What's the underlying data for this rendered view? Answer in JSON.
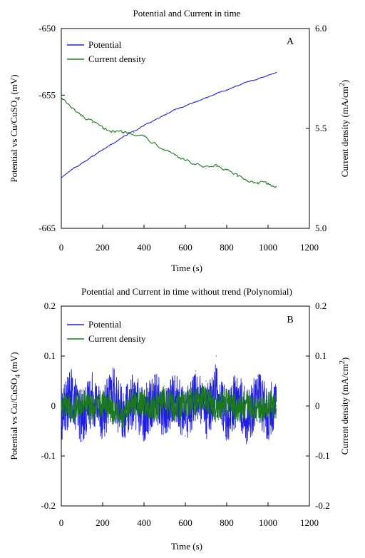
{
  "chart_data": [
    {
      "type": "line",
      "panel_label": "A",
      "title": "Potential and Current in time",
      "xlabel": "Time (s)",
      "ylabel_left": "Potential vs Cu/CuSO",
      "ylabel_left_sub": "4",
      "ylabel_left_suffix": " (mV)",
      "ylabel_right": "Current density (mA/cm",
      "ylabel_right_sup": "2",
      "ylabel_right_suffix": ")",
      "xlim": [
        0,
        1200
      ],
      "ylim_left": [
        -665,
        -650
      ],
      "ylim_right": [
        5.0,
        6.0
      ],
      "xticks": [
        0,
        200,
        400,
        600,
        800,
        1000,
        1200
      ],
      "xtick_labels": [
        "0",
        "200",
        "400",
        "600",
        "800",
        "1000",
        "1200"
      ],
      "yticks_left": [
        -665,
        -655,
        -650
      ],
      "ytick_labels_left": [
        "-665",
        "-655",
        "-650"
      ],
      "yticks_right": [
        5.0,
        5.5,
        6.0
      ],
      "ytick_labels_right": [
        "5.0",
        "5.5",
        "6.0"
      ],
      "grid": false,
      "legend_position": "top-left",
      "series": [
        {
          "name": "Potential",
          "axis": "left",
          "color": "#1f1fe0",
          "x": [
            0,
            50,
            100,
            150,
            200,
            250,
            300,
            350,
            400,
            450,
            500,
            550,
            600,
            650,
            700,
            750,
            800,
            850,
            900,
            950,
            1000,
            1040
          ],
          "y": [
            -661.2,
            -660.6,
            -660.1,
            -659.6,
            -659.1,
            -658.6,
            -658.1,
            -657.7,
            -657.3,
            -656.9,
            -656.5,
            -656.1,
            -655.8,
            -655.5,
            -655.2,
            -654.9,
            -654.6,
            -654.3,
            -654.0,
            -653.8,
            -653.5,
            -653.3
          ]
        },
        {
          "name": "Current density",
          "axis": "right",
          "color": "#1a7a1a",
          "x": [
            0,
            50,
            100,
            150,
            200,
            250,
            300,
            350,
            400,
            450,
            500,
            550,
            600,
            650,
            700,
            750,
            800,
            850,
            900,
            950,
            1000,
            1040
          ],
          "y": [
            5.66,
            5.6,
            5.56,
            5.53,
            5.5,
            5.49,
            5.48,
            5.48,
            5.46,
            5.43,
            5.4,
            5.37,
            5.34,
            5.32,
            5.3,
            5.31,
            5.29,
            5.26,
            5.24,
            5.23,
            5.22,
            5.21
          ]
        }
      ]
    },
    {
      "type": "line",
      "panel_label": "B",
      "title": "Potential and Current in time without trend (Polynomial)",
      "xlabel": "Time (s)",
      "ylabel_left": "Potential vs Cu/CuSO",
      "ylabel_left_sub": "4",
      "ylabel_left_suffix": " (mV)",
      "ylabel_right": "Current density (mA/cm",
      "ylabel_right_sup": "2",
      "ylabel_right_suffix": ")",
      "xlim": [
        0,
        1200
      ],
      "ylim_left": [
        -0.2,
        0.2
      ],
      "ylim_right": [
        -0.2,
        0.2
      ],
      "xticks": [
        0,
        200,
        400,
        600,
        800,
        1000,
        1200
      ],
      "xtick_labels": [
        "0",
        "200",
        "400",
        "600",
        "800",
        "1000",
        "1200"
      ],
      "yticks_left": [
        -0.2,
        -0.1,
        0,
        0.1,
        0.2
      ],
      "ytick_labels_left": [
        "-0.2",
        "-0.1",
        "0",
        "0.1",
        "0.2"
      ],
      "yticks_right": [
        -0.2,
        -0.1,
        0,
        0.1,
        0.2
      ],
      "ytick_labels_right": [
        "-0.2",
        "-0.1",
        "0",
        "0.1",
        "0.2"
      ],
      "grid": false,
      "legend_position": "top-left",
      "series": [
        {
          "name": "Potential",
          "axis": "left",
          "color": "#1f1fe0",
          "x": [
            0,
            50,
            100,
            150,
            200,
            250,
            300,
            350,
            400,
            450,
            500,
            550,
            600,
            650,
            700,
            750,
            800,
            850,
            900,
            950,
            1000,
            1040
          ],
          "y": [
            -0.05,
            0.06,
            -0.07,
            0.05,
            -0.04,
            0.07,
            -0.06,
            0.04,
            -0.05,
            0.06,
            -0.04,
            0.05,
            -0.06,
            0.07,
            -0.05,
            0.1,
            -0.06,
            0.05,
            -0.07,
            0.06,
            -0.05,
            0.03
          ]
        },
        {
          "name": "Current density",
          "axis": "right",
          "color": "#1a7a1a",
          "x": [
            0,
            50,
            100,
            150,
            200,
            250,
            300,
            350,
            400,
            450,
            500,
            550,
            600,
            650,
            700,
            750,
            800,
            850,
            900,
            950,
            1000,
            1040
          ],
          "y": [
            0.01,
            -0.02,
            0.03,
            -0.02,
            0.02,
            -0.03,
            -0.05,
            0.03,
            0.02,
            -0.02,
            0.04,
            -0.02,
            0.02,
            0.03,
            0.05,
            -0.02,
            0.03,
            -0.02,
            0.02,
            -0.03,
            0.01,
            0.0
          ]
        }
      ]
    }
  ]
}
